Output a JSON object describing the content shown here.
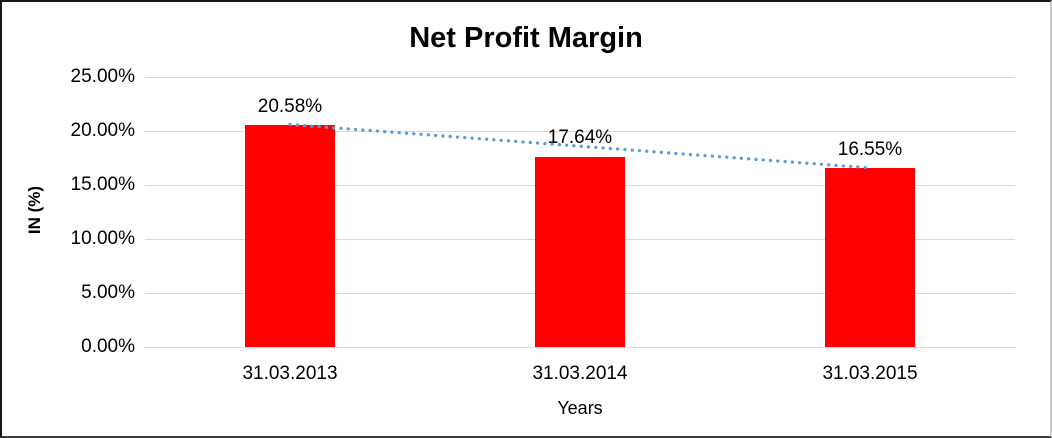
{
  "window": {
    "background": "#ffffff"
  },
  "chart_data": {
    "type": "bar",
    "title": "Net Profit Margin",
    "categories": [
      "31.03.2013",
      "31.03.2014",
      "31.03.2015"
    ],
    "values": [
      20.58,
      17.64,
      16.55
    ],
    "data_labels": [
      "20.58%",
      "17.64%",
      "16.55%"
    ],
    "xlabel": "Years",
    "ylabel": "IN (%)",
    "ylim": [
      0,
      25
    ],
    "ytick_labels": [
      "0.00%",
      "5.00%",
      "10.00%",
      "15.00%",
      "20.00%",
      "25.00%"
    ],
    "grid": true,
    "gridline_color": "#d9d9d9",
    "legend": "none",
    "bar_color": "#FF0000",
    "trendline": {
      "type": "linear",
      "style": "dotted",
      "color": "#5B9BD5",
      "start_value": 20.6,
      "end_value": 16.58
    }
  }
}
